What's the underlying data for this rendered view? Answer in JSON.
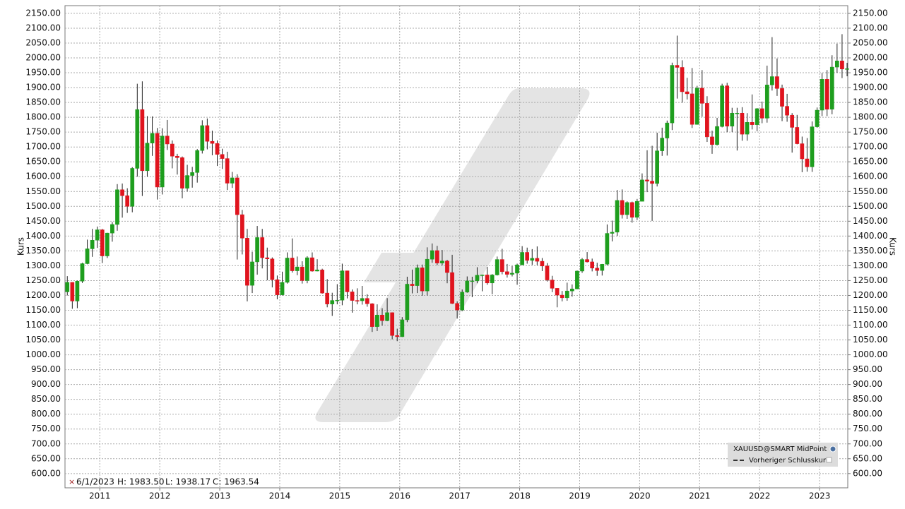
{
  "chart_data": {
    "type": "candlestick",
    "y_label": "Kurs",
    "y2_label": "Kurs",
    "grid": true,
    "legend_position": "lower-right",
    "x": [
      2010.4167,
      2010.5,
      2010.5833,
      2010.6667,
      2010.75,
      2010.8333,
      2010.9167,
      2011,
      2011.0833,
      2011.1667,
      2011.25,
      2011.3333,
      2011.4167,
      2011.5,
      2011.5833,
      2011.6667,
      2011.75,
      2011.8333,
      2011.9167,
      2012,
      2012.0833,
      2012.1667,
      2012.25,
      2012.3333,
      2012.4167,
      2012.5,
      2012.5833,
      2012.6667,
      2012.75,
      2012.8333,
      2012.9167,
      2013,
      2013.0833,
      2013.1667,
      2013.25,
      2013.3333,
      2013.4167,
      2013.5,
      2013.5833,
      2013.6667,
      2013.75,
      2013.8333,
      2013.9167,
      2014,
      2014.0833,
      2014.1667,
      2014.25,
      2014.3333,
      2014.4167,
      2014.5,
      2014.5833,
      2014.6667,
      2014.75,
      2014.8333,
      2014.9167,
      2015,
      2015.0833,
      2015.1667,
      2015.25,
      2015.3333,
      2015.4167,
      2015.5,
      2015.5833,
      2015.6667,
      2015.75,
      2015.8333,
      2015.9167,
      2016,
      2016.0833,
      2016.1667,
      2016.25,
      2016.3333,
      2016.4167,
      2016.5,
      2016.5833,
      2016.6667,
      2016.75,
      2016.8333,
      2016.9167,
      2017,
      2017.0833,
      2017.1667,
      2017.25,
      2017.3333,
      2017.4167,
      2017.5,
      2017.5833,
      2017.6667,
      2017.75,
      2017.8333,
      2017.9167,
      2018,
      2018.0833,
      2018.1667,
      2018.25,
      2018.3333,
      2018.4167,
      2018.5,
      2018.5833,
      2018.6667,
      2018.75,
      2018.8333,
      2018.9167,
      2019,
      2019.0833,
      2019.1667,
      2019.25,
      2019.3333,
      2019.4167,
      2019.5,
      2019.5833,
      2019.6667,
      2019.75,
      2019.8333,
      2019.9167,
      2020,
      2020.0833,
      2020.1667,
      2020.25,
      2020.3333,
      2020.4167,
      2020.5,
      2020.5833,
      2020.6667,
      2020.75,
      2020.8333,
      2020.9167,
      2021,
      2021.0833,
      2021.1667,
      2021.25,
      2021.3333,
      2021.4167,
      2021.5,
      2021.5833,
      2021.6667,
      2021.75,
      2021.8333,
      2021.9167,
      2022,
      2022.0833,
      2022.1667,
      2022.25,
      2022.3333,
      2022.4167,
      2022.5,
      2022.5833,
      2022.6667,
      2022.75,
      2022.8333,
      2022.9167,
      2023,
      2023.0833,
      2023.1667,
      2023.25,
      2023.3333,
      2023.4167
    ],
    "series": [
      {
        "name": "XAUUSD@SMART MidPoint",
        "up_color": "#1e9e1e",
        "down_color": "#e0141e",
        "open": [
          1212,
          1244,
          1181,
          1248,
          1307,
          1357,
          1386,
          1421,
          1333,
          1410,
          1439,
          1556,
          1536,
          1500,
          1628,
          1826,
          1620,
          1713,
          1746,
          1565,
          1737,
          1710,
          1669,
          1664,
          1561,
          1604,
          1614,
          1688,
          1772,
          1719,
          1712,
          1675,
          1661,
          1578,
          1596,
          1472,
          1393,
          1234,
          1313,
          1395,
          1327,
          1323,
          1253,
          1202,
          1244,
          1326,
          1283,
          1296,
          1250,
          1327,
          1282,
          1286,
          1208,
          1171,
          1183,
          1184,
          1283,
          1212,
          1183,
          1182,
          1190,
          1172,
          1095,
          1134,
          1115,
          1142,
          1065,
          1061,
          1118,
          1238,
          1233,
          1293,
          1215,
          1322,
          1351,
          1309,
          1316,
          1277,
          1173,
          1151,
          1211,
          1249,
          1249,
          1268,
          1269,
          1242,
          1269,
          1321,
          1280,
          1271,
          1275,
          1303,
          1345,
          1318,
          1325,
          1315,
          1299,
          1252,
          1224,
          1201,
          1192,
          1215,
          1222,
          1282,
          1321,
          1313,
          1292,
          1284,
          1305,
          1409,
          1413,
          1520,
          1472,
          1513,
          1463,
          1517,
          1589,
          1585,
          1577,
          1687,
          1730,
          1781,
          1975,
          1968,
          1886,
          1879,
          1776,
          1898,
          1847,
          1734,
          1708,
          1769,
          1906,
          1770,
          1814,
          1814,
          1743,
          1783,
          1775,
          1829,
          1797,
          1909,
          1937,
          1897,
          1837,
          1807,
          1766,
          1711,
          1660,
          1633,
          1768,
          1824,
          1928,
          1827,
          1969,
          1990,
          1962.5
        ],
        "high": [
          1265,
          1244,
          1250,
          1310,
          1388,
          1424,
          1432,
          1424,
          1411,
          1447,
          1575,
          1577,
          1561,
          1632,
          1913,
          1921,
          1804,
          1803,
          1764,
          1763,
          1791,
          1722,
          1677,
          1668,
          1640,
          1633,
          1693,
          1790,
          1796,
          1755,
          1722,
          1694,
          1684,
          1616,
          1608,
          1488,
          1424,
          1347,
          1434,
          1424,
          1361,
          1328,
          1267,
          1280,
          1345,
          1392,
          1331,
          1315,
          1332,
          1345,
          1322,
          1290,
          1255,
          1209,
          1238,
          1307,
          1283,
          1220,
          1224,
          1232,
          1204,
          1174,
          1170,
          1157,
          1191,
          1143,
          1088,
          1127,
          1263,
          1287,
          1304,
          1304,
          1362,
          1375,
          1367,
          1353,
          1320,
          1337,
          1180,
          1220,
          1264,
          1263,
          1295,
          1270,
          1296,
          1272,
          1331,
          1357,
          1306,
          1299,
          1307,
          1366,
          1361,
          1356,
          1365,
          1326,
          1309,
          1266,
          1224,
          1215,
          1243,
          1237,
          1284,
          1326,
          1346,
          1324,
          1310,
          1306,
          1439,
          1452,
          1555,
          1557,
          1517,
          1516,
          1525,
          1611,
          1689,
          1704,
          1748,
          1765,
          1789,
          1984,
          2075,
          1992,
          1933,
          1966,
          1906,
          1959,
          1871,
          1755,
          1798,
          1913,
          1916,
          1832,
          1832,
          1834,
          1814,
          1877,
          1831,
          1853,
          1974,
          2070,
          1998,
          1910,
          1879,
          1814,
          1808,
          1735,
          1730,
          1786,
          1833,
          1949,
          1959,
          2009,
          2048,
          2080,
          1983.5
        ],
        "low": [
          1200,
          1155,
          1157,
          1242,
          1305,
          1330,
          1360,
          1309,
          1326,
          1381,
          1418,
          1462,
          1478,
          1480,
          1600,
          1535,
          1600,
          1670,
          1523,
          1540,
          1690,
          1628,
          1607,
          1527,
          1550,
          1563,
          1580,
          1678,
          1692,
          1672,
          1636,
          1626,
          1555,
          1562,
          1321,
          1338,
          1180,
          1208,
          1270,
          1291,
          1251,
          1227,
          1187,
          1200,
          1240,
          1277,
          1268,
          1240,
          1241,
          1280,
          1281,
          1206,
          1160,
          1131,
          1170,
          1167,
          1190,
          1142,
          1170,
          1169,
          1162,
          1077,
          1080,
          1098,
          1113,
          1052,
          1046,
          1060,
          1110,
          1207,
          1208,
          1199,
          1200,
          1310,
          1302,
          1301,
          1241,
          1171,
          1122,
          1147,
          1209,
          1194,
          1241,
          1214,
          1236,
          1204,
          1267,
          1271,
          1260,
          1264,
          1236,
          1302,
          1307,
          1303,
          1302,
          1282,
          1247,
          1211,
          1160,
          1180,
          1182,
          1196,
          1221,
          1276,
          1311,
          1281,
          1266,
          1267,
          1301,
          1382,
          1400,
          1459,
          1458,
          1445,
          1454,
          1517,
          1548,
          1451,
          1567,
          1670,
          1671,
          1757,
          1863,
          1849,
          1860,
          1764,
          1775,
          1802,
          1717,
          1677,
          1705,
          1766,
          1750,
          1750,
          1688,
          1721,
          1721,
          1759,
          1753,
          1780,
          1782,
          1890,
          1872,
          1787,
          1785,
          1681,
          1709,
          1615,
          1617,
          1616,
          1765,
          1804,
          1804,
          1810,
          1950,
          1932,
          1938.17
        ],
        "close": [
          1244,
          1181,
          1248,
          1307,
          1357,
          1386,
          1421,
          1333,
          1410,
          1439,
          1556,
          1536,
          1500,
          1628,
          1826,
          1620,
          1713,
          1746,
          1565,
          1737,
          1710,
          1669,
          1664,
          1561,
          1604,
          1614,
          1688,
          1772,
          1719,
          1712,
          1675,
          1661,
          1578,
          1596,
          1472,
          1393,
          1234,
          1313,
          1395,
          1327,
          1323,
          1253,
          1202,
          1244,
          1326,
          1283,
          1296,
          1250,
          1327,
          1282,
          1286,
          1208,
          1171,
          1183,
          1184,
          1283,
          1212,
          1183,
          1182,
          1190,
          1172,
          1095,
          1134,
          1115,
          1142,
          1065,
          1061,
          1118,
          1238,
          1233,
          1293,
          1215,
          1322,
          1351,
          1309,
          1316,
          1277,
          1173,
          1151,
          1211,
          1249,
          1249,
          1268,
          1269,
          1242,
          1269,
          1321,
          1280,
          1271,
          1275,
          1303,
          1345,
          1318,
          1325,
          1315,
          1299,
          1252,
          1224,
          1201,
          1192,
          1215,
          1222,
          1282,
          1321,
          1313,
          1292,
          1284,
          1305,
          1409,
          1413,
          1520,
          1472,
          1513,
          1463,
          1517,
          1589,
          1585,
          1577,
          1687,
          1730,
          1781,
          1975,
          1968,
          1886,
          1879,
          1776,
          1898,
          1847,
          1734,
          1708,
          1769,
          1906,
          1770,
          1814,
          1814,
          1743,
          1783,
          1775,
          1829,
          1797,
          1909,
          1937,
          1897,
          1837,
          1807,
          1766,
          1711,
          1660,
          1633,
          1768,
          1824,
          1928,
          1827,
          1969,
          1990,
          1962.5,
          1963.54
        ]
      }
    ],
    "reference_line": {
      "name": "Vorheriger Schlusskurs"
    },
    "cursor": {
      "date": "6/1/2023",
      "high": "H: 1983.50",
      "low": "L: 1938.17",
      "close": "C: 1963.54"
    },
    "xlim": [
      2010.42,
      2023.47
    ],
    "xticks": [
      2011,
      2012,
      2013,
      2014,
      2015,
      2016,
      2017,
      2018,
      2019,
      2020,
      2021,
      2022,
      2023
    ],
    "ylim": [
      552,
      2176
    ],
    "yticks": [
      {
        "value": 600,
        "label": "600.00"
      },
      {
        "value": 650,
        "label": "650.00"
      },
      {
        "value": 700,
        "label": "700.00"
      },
      {
        "value": 750,
        "label": "750.00"
      },
      {
        "value": 800,
        "label": "800.00"
      },
      {
        "value": 850,
        "label": "850.00"
      },
      {
        "value": 900,
        "label": "900.00"
      },
      {
        "value": 950,
        "label": "950.00"
      },
      {
        "value": 1000,
        "label": "1000.00"
      },
      {
        "value": 1050,
        "label": "1050.00"
      },
      {
        "value": 1100,
        "label": "1100.00"
      },
      {
        "value": 1150,
        "label": "1150.00"
      },
      {
        "value": 1200,
        "label": "1200.00"
      },
      {
        "value": 1250,
        "label": "1250.00"
      },
      {
        "value": 1300,
        "label": "1300.00"
      },
      {
        "value": 1350,
        "label": "1350.00"
      },
      {
        "value": 1400,
        "label": "1400.00"
      },
      {
        "value": 1450,
        "label": "1450.00"
      },
      {
        "value": 1500,
        "label": "1500.00"
      },
      {
        "value": 1550,
        "label": "1550.00"
      },
      {
        "value": 1600,
        "label": "1600.00"
      },
      {
        "value": 1650,
        "label": "1650.00"
      },
      {
        "value": 1700,
        "label": "1700.00"
      },
      {
        "value": 1750,
        "label": "1750.00"
      },
      {
        "value": 1800,
        "label": "1800.00"
      },
      {
        "value": 1850,
        "label": "1850.00"
      },
      {
        "value": 1900,
        "label": "1900.00"
      },
      {
        "value": 1950,
        "label": "1950.00"
      },
      {
        "value": 2000,
        "label": "2000.00"
      },
      {
        "value": 2050,
        "label": "2050.00"
      },
      {
        "value": 2100,
        "label": "2100.00"
      },
      {
        "value": 2150,
        "label": "2150.00"
      }
    ],
    "y2lim": [
      552,
      2176
    ],
    "y2ticks": [
      {
        "value": 600,
        "label": "600.00"
      },
      {
        "value": 650,
        "label": "650.00"
      },
      {
        "value": 700,
        "label": "700.00"
      },
      {
        "value": 750,
        "label": "750.00"
      },
      {
        "value": 800,
        "label": "800.00"
      },
      {
        "value": 850,
        "label": "850.00"
      },
      {
        "value": 900,
        "label": "900.00"
      },
      {
        "value": 950,
        "label": "950.00"
      },
      {
        "value": 1000,
        "label": "1000.00"
      },
      {
        "value": 1050,
        "label": "1050.00"
      },
      {
        "value": 1100,
        "label": "1100.00"
      },
      {
        "value": 1150,
        "label": "1150.00"
      },
      {
        "value": 1200,
        "label": "1200.00"
      },
      {
        "value": 1250,
        "label": "1250.00"
      },
      {
        "value": 1300,
        "label": "1300.00"
      },
      {
        "value": 1350,
        "label": "1350.00"
      },
      {
        "value": 1400,
        "label": "1400.00"
      },
      {
        "value": 1450,
        "label": "1450.00"
      },
      {
        "value": 1500,
        "label": "1500.00"
      },
      {
        "value": 1550,
        "label": "1550.00"
      },
      {
        "value": 1600,
        "label": "1600.00"
      },
      {
        "value": 1650,
        "label": "1650.00"
      },
      {
        "value": 1700,
        "label": "1700.00"
      },
      {
        "value": 1750,
        "label": "1750.00"
      },
      {
        "value": 1800,
        "label": "1800.00"
      },
      {
        "value": 1850,
        "label": "1850.00"
      },
      {
        "value": 1900,
        "label": "1900.00"
      },
      {
        "value": 1950,
        "label": "1950.00"
      },
      {
        "value": 2000,
        "label": "2000.00"
      },
      {
        "value": 2050,
        "label": "2050.00"
      },
      {
        "value": 2100,
        "label": "2100.00"
      },
      {
        "value": 2150,
        "label": "2150.00"
      }
    ]
  }
}
